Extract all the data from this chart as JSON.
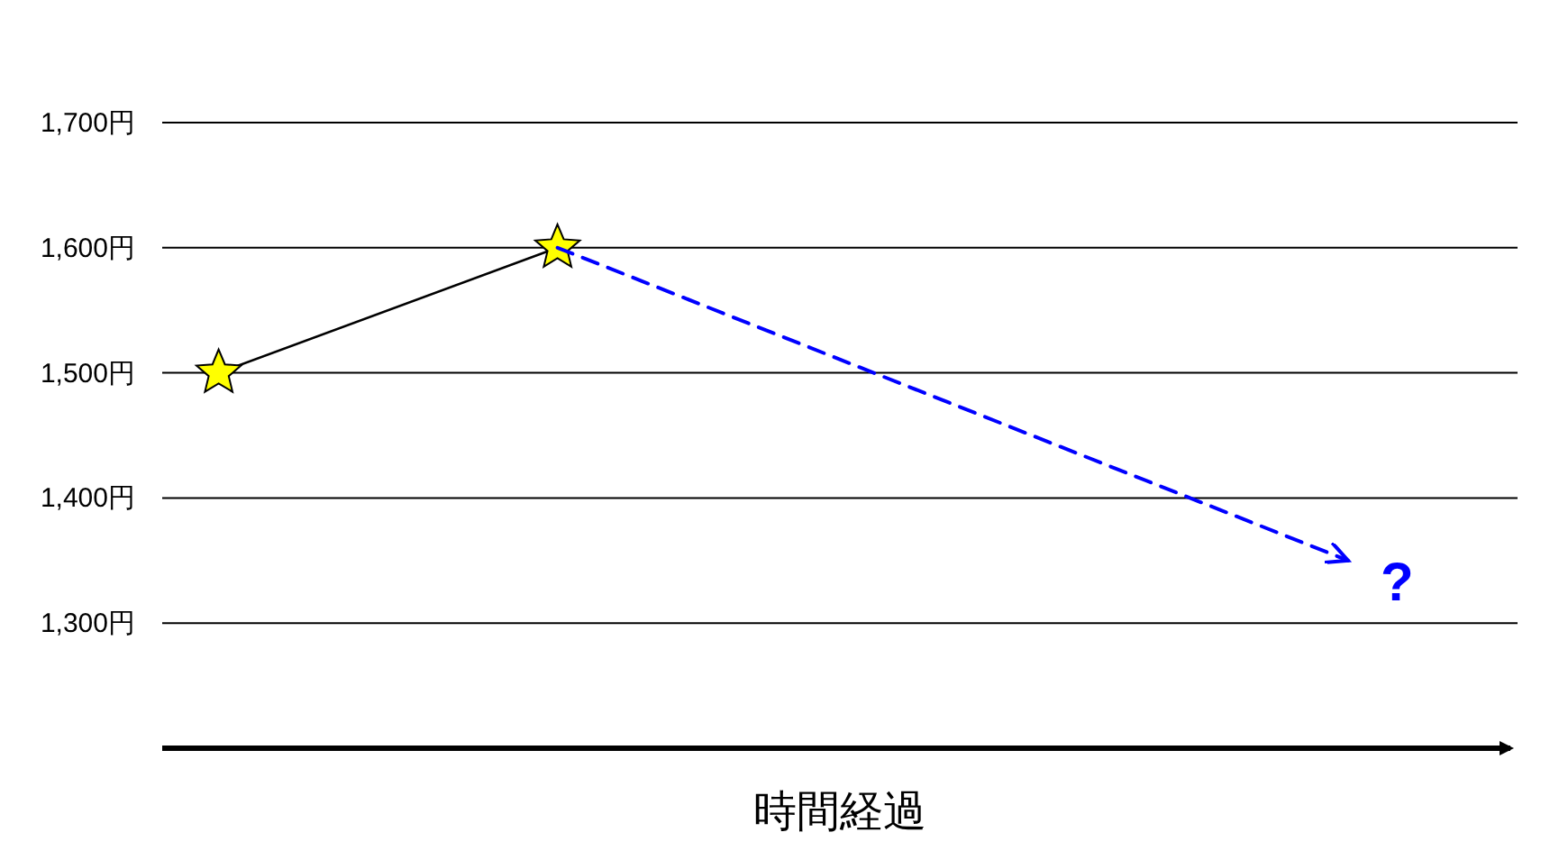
{
  "chart_data": {
    "type": "line",
    "categories": [
      null,
      null,
      null,
      null,
      null,
      null,
      null,
      null,
      null,
      null,
      null,
      null
    ],
    "series": [
      {
        "color": "#000000",
        "colors": [
          "#ffff00",
          null,
          null,
          "#ffff00",
          null,
          null,
          null,
          null,
          null,
          null,
          null,
          null
        ],
        "marker": "star",
        "line_style": "solid",
        "values": [
          1500,
          null,
          null,
          1600,
          null,
          null,
          null,
          null,
          null,
          null,
          null,
          null
        ]
      },
      {
        "color": "#0000ff",
        "marker": "none",
        "line_style": "dashed",
        "values": [
          null,
          null,
          null,
          1600,
          null,
          null,
          null,
          null,
          null,
          null,
          1350,
          null
        ]
      }
    ],
    "xlabel": "時間経過",
    "ylim": [
      1200,
      1700
    ],
    "yticks": [
      {
        "value": 1300,
        "label": "1,300円"
      },
      {
        "value": 1400,
        "label": "1,400円"
      },
      {
        "value": 1500,
        "label": "1,500円"
      },
      {
        "value": 1600,
        "label": "1,600円"
      },
      {
        "value": 1700,
        "label": "1,700円"
      }
    ],
    "grid": "y",
    "tick_labels": "y",
    "annotations": [
      "?"
    ]
  }
}
